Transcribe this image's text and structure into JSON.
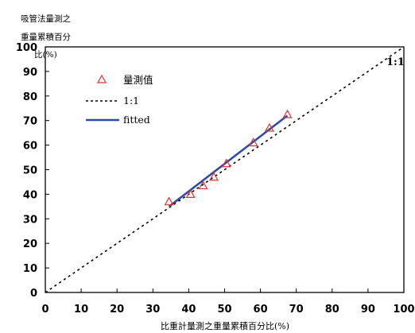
{
  "chart_data": {
    "type": "scatter",
    "title": "",
    "ylabel_lines": [
      "吸管法量測之",
      "重量累積百分",
      "比(%)"
    ],
    "xlabel": "比重計量測之重量累積百分比(%)",
    "xlim": [
      0,
      100
    ],
    "ylim": [
      0,
      100
    ],
    "xticks": [
      0,
      10,
      20,
      30,
      40,
      50,
      60,
      70,
      80,
      90,
      100
    ],
    "yticks": [
      0,
      10,
      20,
      30,
      40,
      50,
      60,
      70,
      80,
      90,
      100
    ],
    "grid": false,
    "legend_position": "upper-left",
    "annotation": "1:1",
    "series": [
      {
        "name": "量測值",
        "kind": "scatter",
        "marker": "open-triangle",
        "color": "#e03030",
        "x": [
          34.5,
          40.5,
          44,
          47,
          50.5,
          58,
          62.5,
          67.5
        ],
        "y": [
          37,
          40,
          43.5,
          47,
          52.5,
          61,
          67,
          72.5
        ]
      },
      {
        "name": "1:1",
        "kind": "line",
        "style": "dotted",
        "color": "#000000",
        "x": [
          0,
          100
        ],
        "y": [
          0,
          100
        ]
      },
      {
        "name": "fitted",
        "kind": "line",
        "style": "solid",
        "color": "#2e4aa8",
        "x": [
          34.5,
          67.5
        ],
        "y": [
          35,
          72
        ]
      }
    ]
  }
}
